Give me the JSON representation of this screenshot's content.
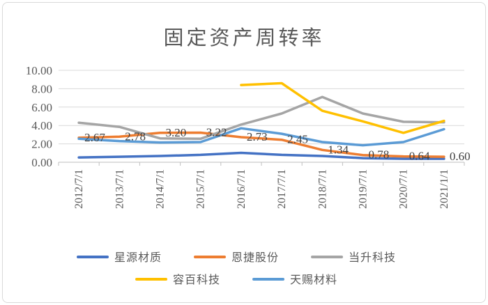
{
  "chart_data": {
    "type": "line",
    "title": "固定资产周转率",
    "categories": [
      "2012/7/1",
      "2013/7/1",
      "2014/7/1",
      "2015/7/1",
      "2016/7/1",
      "2017/7/1",
      "2018/7/1",
      "2019/7/1",
      "2020/7/1",
      "2021/1/1"
    ],
    "yticks": [
      "0.00",
      "2.00",
      "4.00",
      "6.00",
      "8.00",
      "10.00"
    ],
    "ylim": [
      0,
      10
    ],
    "grid": true,
    "legend_position": "bottom",
    "series": [
      {
        "name": "星源材质",
        "color": "#4472C4",
        "values": [
          0.52,
          0.6,
          0.68,
          0.8,
          1.02,
          0.8,
          0.68,
          0.45,
          0.38,
          0.38
        ]
      },
      {
        "name": "恩捷股份",
        "color": "#ED7D31",
        "values": [
          2.67,
          2.78,
          3.2,
          3.22,
          2.73,
          2.45,
          1.34,
          0.78,
          0.64,
          0.6
        ],
        "data_labels": [
          "2.67",
          "2.78",
          "3.20",
          "3.22",
          "2.73",
          "2.45",
          "1.34",
          "0.78",
          "0.64",
          "0.60"
        ]
      },
      {
        "name": "当升科技",
        "color": "#A5A5A5",
        "values": [
          4.3,
          3.85,
          2.6,
          2.55,
          4.1,
          5.3,
          7.1,
          5.3,
          4.4,
          4.35
        ]
      },
      {
        "name": "容百科技",
        "color": "#FFC000",
        "values": [
          null,
          null,
          null,
          null,
          8.4,
          8.6,
          5.6,
          4.45,
          3.2,
          4.5
        ]
      },
      {
        "name": "天赐材料",
        "color": "#5B9BD5",
        "values": [
          2.55,
          2.3,
          2.15,
          2.2,
          3.7,
          3.1,
          2.2,
          1.85,
          2.2,
          3.6
        ]
      }
    ]
  }
}
